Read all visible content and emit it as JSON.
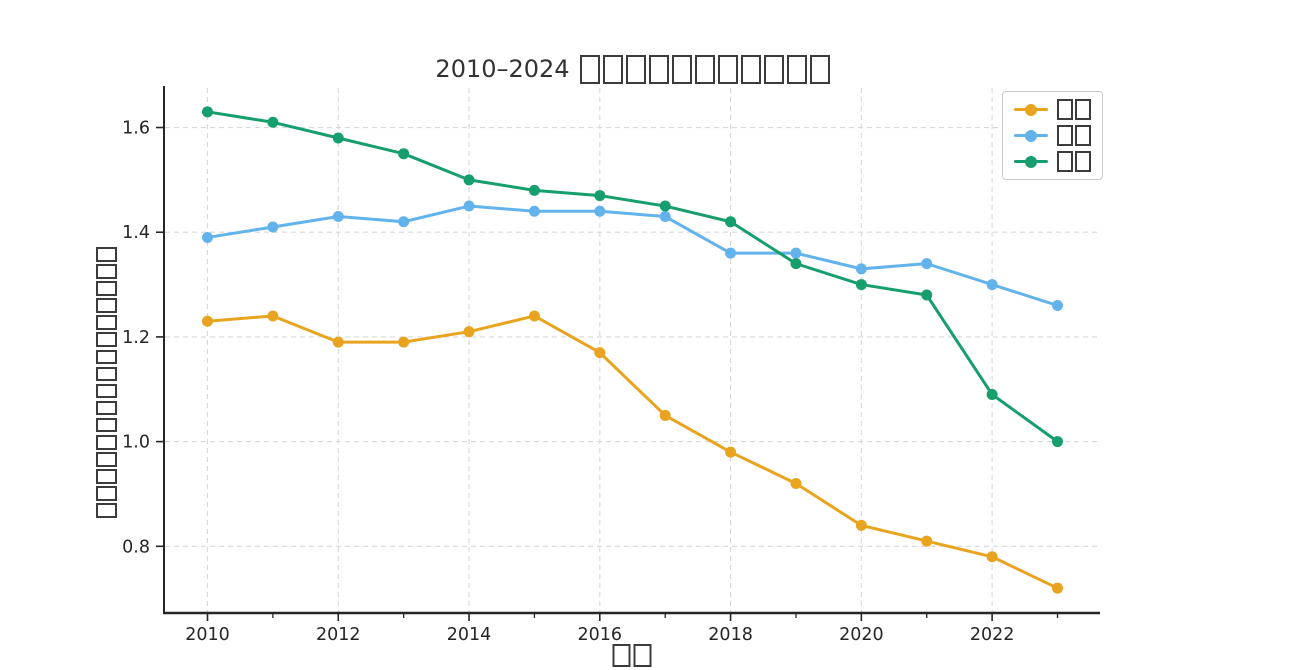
{
  "figure": {
    "title_prefix": "2010–2024",
    "title_tofu_count": 11,
    "ylabel_tofu_count": 16,
    "xlabel_tofu_count": 2
  },
  "colors": {
    "series_orange": "#E9A41F",
    "series_blue": "#62B3EC",
    "series_green": "#169E6C",
    "axis": "#262626",
    "grid": "#d8d8d8",
    "title_text": "#333333",
    "tofu_border": "#3b3b3b",
    "legend_border": "#cccccc"
  },
  "legend": {
    "entries": [
      {
        "label": "□□",
        "label_tofu_count": 2,
        "color": "#E9A41F"
      },
      {
        "label": "□□",
        "label_tofu_count": 2,
        "color": "#62B3EC"
      },
      {
        "label": "□□",
        "label_tofu_count": 2,
        "color": "#169E6C"
      }
    ],
    "position": "upper right"
  },
  "chart_data": {
    "type": "line",
    "title": "2010–2024 □□□□□□□□□□□",
    "xlabel": "□□",
    "ylabel": "□□□□□□□□□□□□□□□□",
    "x": [
      2010,
      2011,
      2012,
      2013,
      2014,
      2015,
      2016,
      2017,
      2018,
      2019,
      2020,
      2021,
      2022,
      2023
    ],
    "series": [
      {
        "name": "□□ (orange)",
        "color": "#E9A41F",
        "values": [
          1.23,
          1.24,
          1.19,
          1.19,
          1.21,
          1.24,
          1.17,
          1.05,
          0.98,
          0.92,
          0.84,
          0.81,
          0.78,
          0.72
        ]
      },
      {
        "name": "□□ (blue)",
        "color": "#62B3EC",
        "values": [
          1.39,
          1.41,
          1.43,
          1.42,
          1.45,
          1.44,
          1.44,
          1.43,
          1.36,
          1.36,
          1.33,
          1.34,
          1.3,
          1.26
        ]
      },
      {
        "name": "□□ (green)",
        "color": "#169E6C",
        "values": [
          1.63,
          1.61,
          1.58,
          1.55,
          1.5,
          1.48,
          1.47,
          1.45,
          1.42,
          1.34,
          1.3,
          1.28,
          1.09,
          1.0
        ]
      }
    ],
    "xlim": [
      2009.35,
      2023.65
    ],
    "ylim": [
      0.6745,
      1.6755
    ],
    "x_tick_values": [
      2010,
      2012,
      2014,
      2016,
      2018,
      2020,
      2022
    ],
    "x_tick_labels": [
      "2010",
      "2012",
      "2014",
      "2016",
      "2018",
      "2020",
      "2022"
    ],
    "x_minor_tick_values": [
      2011,
      2013,
      2015,
      2017,
      2019,
      2021,
      2023
    ],
    "y_tick_values": [
      0.8,
      1.0,
      1.2,
      1.4,
      1.6
    ],
    "y_tick_labels": [
      "0.8",
      "1.0",
      "1.2",
      "1.4",
      "1.6"
    ],
    "grid": true,
    "grid_style": "dashed",
    "legend_position": "upper right"
  }
}
